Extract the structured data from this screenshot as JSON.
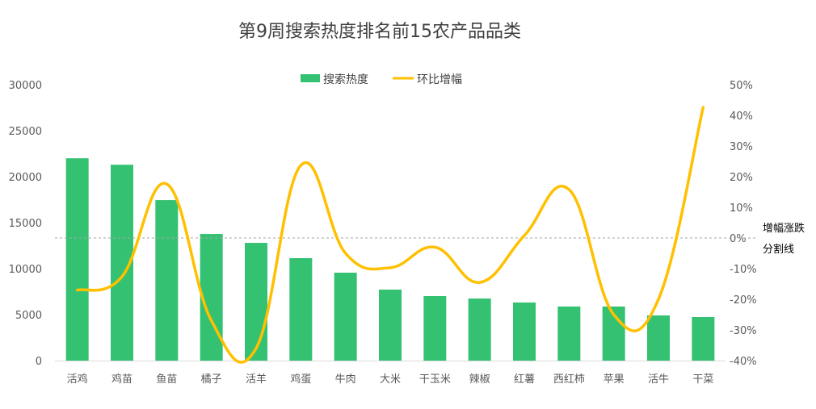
{
  "chart_data": {
    "type": "bar+line",
    "title": "第9周搜索热度排名前15农产品品类",
    "categories": [
      "活鸡",
      "鸡苗",
      "鱼苗",
      "橘子",
      "活羊",
      "鸡蛋",
      "牛肉",
      "大米",
      "干玉米",
      "辣椒",
      "红薯",
      "西红柿",
      "苹果",
      "活牛",
      "干菜"
    ],
    "series": [
      {
        "name": "搜索热度",
        "type": "bar",
        "axis": "left",
        "color": "#34c172",
        "values": [
          22000,
          21300,
          17450,
          13770,
          12800,
          11140,
          9560,
          7720,
          7020,
          6750,
          6320,
          5880,
          5880,
          4910,
          4740
        ]
      },
      {
        "name": "环比增幅",
        "type": "line",
        "axis": "right",
        "color": "#ffc000",
        "smooth": true,
        "values": [
          -17,
          -12.6,
          17.6,
          -27,
          -36,
          23.7,
          -5,
          -9.7,
          -3,
          -14.5,
          0.8,
          15.8,
          -25,
          -20,
          42.6
        ]
      }
    ],
    "left_axis": {
      "min": 0,
      "max": 30000,
      "step": 5000,
      "ticks": [
        "0",
        "5000",
        "10000",
        "15000",
        "20000",
        "25000",
        "30000"
      ]
    },
    "right_axis": {
      "min": -40,
      "max": 50,
      "step": 10,
      "ticks": [
        "-40%",
        "-30%",
        "-20%",
        "-10%",
        "0%",
        "10%",
        "20%",
        "30%",
        "40%",
        "50%"
      ]
    },
    "reference_line": {
      "value": 0,
      "axis": "right",
      "label_lines": [
        "增幅涨跌",
        "分割线"
      ]
    },
    "legend": {
      "placement": "top-center"
    }
  }
}
